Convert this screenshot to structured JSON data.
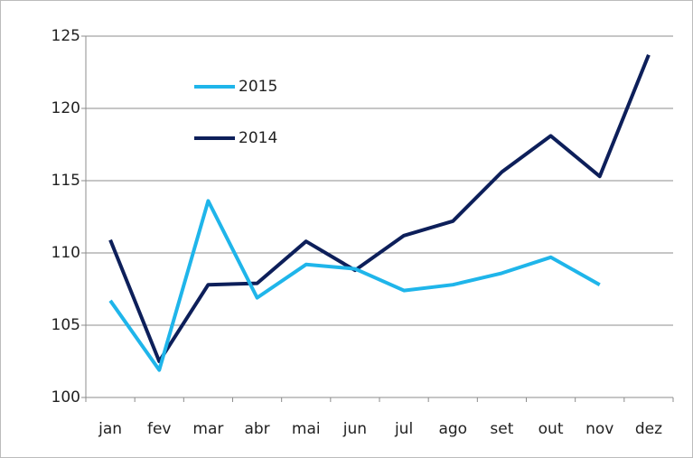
{
  "chart_data": {
    "type": "line",
    "categories": [
      "jan",
      "fev",
      "mar",
      "abr",
      "mai",
      "jun",
      "jul",
      "ago",
      "set",
      "out",
      "nov",
      "dez"
    ],
    "series": [
      {
        "name": "2015",
        "color": "#1fb5ea",
        "values": [
          106.7,
          101.9,
          113.6,
          106.9,
          109.2,
          108.9,
          107.4,
          107.8,
          108.6,
          109.7,
          107.8,
          null
        ]
      },
      {
        "name": "2014",
        "color": "#0d1f5a",
        "values": [
          110.9,
          102.5,
          107.8,
          107.9,
          110.8,
          108.8,
          111.2,
          112.2,
          115.6,
          118.1,
          115.3,
          123.7
        ]
      }
    ],
    "ylim": [
      100,
      125
    ],
    "yticks": [
      100,
      105,
      110,
      115,
      120,
      125
    ],
    "grid": true,
    "legend": "upper left"
  }
}
